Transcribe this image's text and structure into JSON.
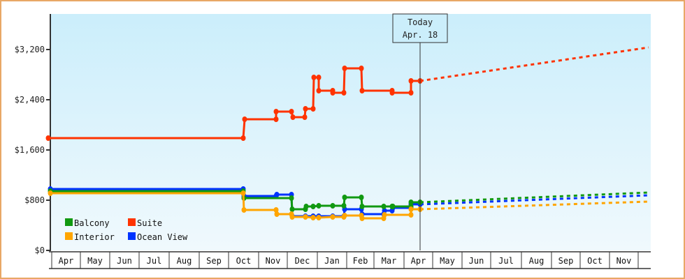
{
  "chart_data": {
    "type": "line",
    "title": "",
    "xlabel": "",
    "ylabel": "",
    "ylim": [
      0,
      3200
    ],
    "yticks": [
      "$0",
      "$800",
      "$1,600",
      "$2,400",
      "$3,200"
    ],
    "ytick_values": [
      0,
      800,
      1600,
      2400,
      3200
    ],
    "x_months": [
      "Apr",
      "May",
      "Jun",
      "Jul",
      "Aug",
      "Sep",
      "Oct",
      "Nov",
      "Dec",
      "Jan",
      "Feb",
      "Mar",
      "Apr",
      "May",
      "Jun",
      "Jul",
      "Aug",
      "Sep",
      "Oct",
      "Nov"
    ],
    "today_marker": {
      "line1": "Today",
      "line2": "Apr. 18"
    },
    "legend": [
      {
        "name": "Balcony",
        "color": "#119911"
      },
      {
        "name": "Suite",
        "color": "#ff3300"
      },
      {
        "name": "Interior",
        "color": "#ffa500"
      },
      {
        "name": "Ocean View",
        "color": "#0033ff"
      }
    ],
    "series": [
      {
        "name": "Suite",
        "color": "#ff3300",
        "history": [
          [
            "Apr",
            1790
          ],
          [
            "Oct",
            1790
          ],
          [
            "Oct",
            2090
          ],
          [
            "Nov",
            2090
          ],
          [
            "Nov",
            2210
          ],
          [
            "Dec",
            2210
          ],
          [
            "Dec",
            2120
          ],
          [
            "Dec",
            2260
          ],
          [
            "Jan",
            2260
          ],
          [
            "Jan",
            2760
          ],
          [
            "Jan",
            2540
          ],
          [
            "Jan",
            2510
          ],
          [
            "Feb",
            2900
          ],
          [
            "Feb",
            2540
          ],
          [
            "Mar",
            2510
          ],
          [
            "Apr",
            2700
          ]
        ],
        "projection": [
          [
            "Apr",
            2700
          ],
          [
            "Nov",
            3230
          ]
        ]
      },
      {
        "name": "Ocean View",
        "color": "#0033ff",
        "history": [
          [
            "Apr",
            980
          ],
          [
            "Oct",
            980
          ],
          [
            "Oct",
            900
          ],
          [
            "Nov",
            920
          ],
          [
            "Dec",
            920
          ],
          [
            "Dec",
            560
          ],
          [
            "Jan",
            560
          ],
          [
            "Feb",
            640
          ],
          [
            "Mar",
            640
          ],
          [
            "Mar",
            680
          ],
          [
            "Apr",
            680
          ],
          [
            "Apr",
            740
          ]
        ],
        "projection": [
          [
            "Apr",
            740
          ],
          [
            "Nov",
            880
          ]
        ]
      },
      {
        "name": "Balcony",
        "color": "#119911",
        "history": [
          [
            "Apr",
            945
          ],
          [
            "Oct",
            945
          ],
          [
            "Oct",
            835
          ],
          [
            "Dec",
            835
          ],
          [
            "Dec",
            660
          ],
          [
            "Dec",
            700
          ],
          [
            "Jan",
            720
          ],
          [
            "Feb",
            850
          ],
          [
            "Feb",
            700
          ],
          [
            "Mar",
            720
          ],
          [
            "Apr",
            770
          ]
        ],
        "projection": [
          [
            "Apr",
            770
          ],
          [
            "Nov",
            920
          ]
        ]
      },
      {
        "name": "Interior",
        "color": "#ffa500",
        "history": [
          [
            "Apr",
            910
          ],
          [
            "Oct",
            910
          ],
          [
            "Oct",
            650
          ],
          [
            "Nov",
            650
          ],
          [
            "Nov",
            580
          ],
          [
            "Dec",
            560
          ],
          [
            "Jan",
            540
          ],
          [
            "Feb",
            530
          ],
          [
            "Mar",
            530
          ],
          [
            "Mar",
            580
          ],
          [
            "Apr",
            580
          ],
          [
            "Apr",
            660
          ]
        ],
        "projection": [
          [
            "Apr",
            660
          ],
          [
            "Nov",
            780
          ]
        ]
      }
    ]
  }
}
